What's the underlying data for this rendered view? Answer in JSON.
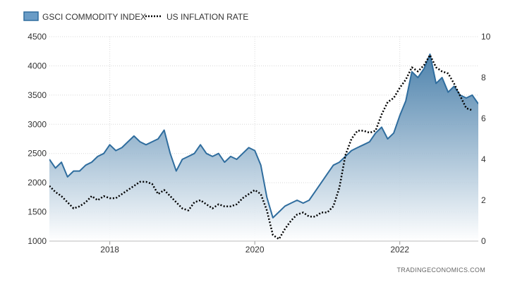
{
  "source": "TRADINGECONOMICS.COM",
  "colors": {
    "series_gsci": "#2f6d9e",
    "series_inflation": "#000000",
    "grid": "#d8d8d8",
    "area_top": "#2f6d9e",
    "area_bottom": "#ffffff"
  },
  "chart_data": {
    "type": "line",
    "title": "",
    "xlabel": "",
    "ylabel_left": "",
    "ylabel_right": "",
    "x_domain": [
      "2017-03",
      "2023-02"
    ],
    "x_ticks": [
      "2018",
      "2020",
      "2022"
    ],
    "y_left": {
      "range": [
        1000,
        4500
      ],
      "ticks": [
        "1000",
        "1500",
        "2000",
        "2500",
        "3000",
        "3500",
        "4000",
        "4500"
      ]
    },
    "y_right": {
      "range": [
        0,
        10
      ],
      "ticks": [
        "0",
        "2",
        "4",
        "6",
        "8",
        "10"
      ]
    },
    "grid": true,
    "legend": "top-left",
    "series": [
      {
        "name": "GSCI COMMODITY INDEX",
        "style": "area-line",
        "axis": "left",
        "points": [
          [
            "2017-03",
            2400
          ],
          [
            "2017-04",
            2250
          ],
          [
            "2017-05",
            2350
          ],
          [
            "2017-06",
            2100
          ],
          [
            "2017-07",
            2200
          ],
          [
            "2017-08",
            2200
          ],
          [
            "2017-09",
            2300
          ],
          [
            "2017-10",
            2350
          ],
          [
            "2017-11",
            2450
          ],
          [
            "2017-12",
            2500
          ],
          [
            "2018-01",
            2650
          ],
          [
            "2018-02",
            2550
          ],
          [
            "2018-03",
            2600
          ],
          [
            "2018-04",
            2700
          ],
          [
            "2018-05",
            2800
          ],
          [
            "2018-06",
            2700
          ],
          [
            "2018-07",
            2650
          ],
          [
            "2018-08",
            2700
          ],
          [
            "2018-09",
            2750
          ],
          [
            "2018-10",
            2900
          ],
          [
            "2018-11",
            2500
          ],
          [
            "2018-12",
            2200
          ],
          [
            "2019-01",
            2400
          ],
          [
            "2019-02",
            2450
          ],
          [
            "2019-03",
            2500
          ],
          [
            "2019-04",
            2650
          ],
          [
            "2019-05",
            2500
          ],
          [
            "2019-06",
            2450
          ],
          [
            "2019-07",
            2500
          ],
          [
            "2019-08",
            2350
          ],
          [
            "2019-09",
            2450
          ],
          [
            "2019-10",
            2400
          ],
          [
            "2019-11",
            2500
          ],
          [
            "2019-12",
            2600
          ],
          [
            "2020-01",
            2550
          ],
          [
            "2020-02",
            2300
          ],
          [
            "2020-03",
            1750
          ],
          [
            "2020-04",
            1400
          ],
          [
            "2020-05",
            1500
          ],
          [
            "2020-06",
            1600
          ],
          [
            "2020-07",
            1650
          ],
          [
            "2020-08",
            1700
          ],
          [
            "2020-09",
            1650
          ],
          [
            "2020-10",
            1700
          ],
          [
            "2020-11",
            1850
          ],
          [
            "2020-12",
            2000
          ],
          [
            "2021-01",
            2150
          ],
          [
            "2021-02",
            2300
          ],
          [
            "2021-03",
            2350
          ],
          [
            "2021-04",
            2450
          ],
          [
            "2021-05",
            2550
          ],
          [
            "2021-06",
            2600
          ],
          [
            "2021-07",
            2650
          ],
          [
            "2021-08",
            2700
          ],
          [
            "2021-09",
            2850
          ],
          [
            "2021-10",
            2950
          ],
          [
            "2021-11",
            2750
          ],
          [
            "2021-12",
            2850
          ],
          [
            "2022-01",
            3150
          ],
          [
            "2022-02",
            3400
          ],
          [
            "2022-03",
            3900
          ],
          [
            "2022-04",
            3800
          ],
          [
            "2022-05",
            3950
          ],
          [
            "2022-06",
            4200
          ],
          [
            "2022-07",
            3700
          ],
          [
            "2022-08",
            3800
          ],
          [
            "2022-09",
            3550
          ],
          [
            "2022-10",
            3650
          ],
          [
            "2022-11",
            3500
          ],
          [
            "2022-12",
            3450
          ],
          [
            "2023-01",
            3500
          ],
          [
            "2023-02",
            3350
          ]
        ]
      },
      {
        "name": "US INFLATION RATE",
        "style": "dotted-line",
        "axis": "right",
        "points": [
          [
            "2017-03",
            2.7
          ],
          [
            "2017-04",
            2.4
          ],
          [
            "2017-05",
            2.2
          ],
          [
            "2017-06",
            1.9
          ],
          [
            "2017-07",
            1.6
          ],
          [
            "2017-08",
            1.7
          ],
          [
            "2017-09",
            1.9
          ],
          [
            "2017-10",
            2.2
          ],
          [
            "2017-11",
            2.0
          ],
          [
            "2017-12",
            2.2
          ],
          [
            "2018-01",
            2.1
          ],
          [
            "2018-02",
            2.1
          ],
          [
            "2018-03",
            2.3
          ],
          [
            "2018-04",
            2.5
          ],
          [
            "2018-05",
            2.7
          ],
          [
            "2018-06",
            2.9
          ],
          [
            "2018-07",
            2.9
          ],
          [
            "2018-08",
            2.8
          ],
          [
            "2018-09",
            2.3
          ],
          [
            "2018-10",
            2.5
          ],
          [
            "2018-11",
            2.2
          ],
          [
            "2018-12",
            1.9
          ],
          [
            "2019-01",
            1.6
          ],
          [
            "2019-02",
            1.5
          ],
          [
            "2019-03",
            1.9
          ],
          [
            "2019-04",
            2.0
          ],
          [
            "2019-05",
            1.8
          ],
          [
            "2019-06",
            1.6
          ],
          [
            "2019-07",
            1.8
          ],
          [
            "2019-08",
            1.7
          ],
          [
            "2019-09",
            1.7
          ],
          [
            "2019-10",
            1.8
          ],
          [
            "2019-11",
            2.1
          ],
          [
            "2019-12",
            2.3
          ],
          [
            "2020-01",
            2.5
          ],
          [
            "2020-02",
            2.3
          ],
          [
            "2020-03",
            1.5
          ],
          [
            "2020-04",
            0.3
          ],
          [
            "2020-05",
            0.1
          ],
          [
            "2020-06",
            0.6
          ],
          [
            "2020-07",
            1.0
          ],
          [
            "2020-08",
            1.3
          ],
          [
            "2020-09",
            1.4
          ],
          [
            "2020-10",
            1.2
          ],
          [
            "2020-11",
            1.2
          ],
          [
            "2020-12",
            1.4
          ],
          [
            "2021-01",
            1.4
          ],
          [
            "2021-02",
            1.7
          ],
          [
            "2021-03",
            2.6
          ],
          [
            "2021-04",
            4.2
          ],
          [
            "2021-05",
            5.0
          ],
          [
            "2021-06",
            5.4
          ],
          [
            "2021-07",
            5.4
          ],
          [
            "2021-08",
            5.3
          ],
          [
            "2021-09",
            5.4
          ],
          [
            "2021-10",
            6.2
          ],
          [
            "2021-11",
            6.8
          ],
          [
            "2021-12",
            7.0
          ],
          [
            "2022-01",
            7.5
          ],
          [
            "2022-02",
            7.9
          ],
          [
            "2022-03",
            8.5
          ],
          [
            "2022-04",
            8.3
          ],
          [
            "2022-05",
            8.6
          ],
          [
            "2022-06",
            9.1
          ],
          [
            "2022-07",
            8.5
          ],
          [
            "2022-08",
            8.3
          ],
          [
            "2022-09",
            8.2
          ],
          [
            "2022-10",
            7.7
          ],
          [
            "2022-11",
            7.1
          ],
          [
            "2022-12",
            6.5
          ],
          [
            "2023-01",
            6.4
          ]
        ]
      }
    ]
  }
}
